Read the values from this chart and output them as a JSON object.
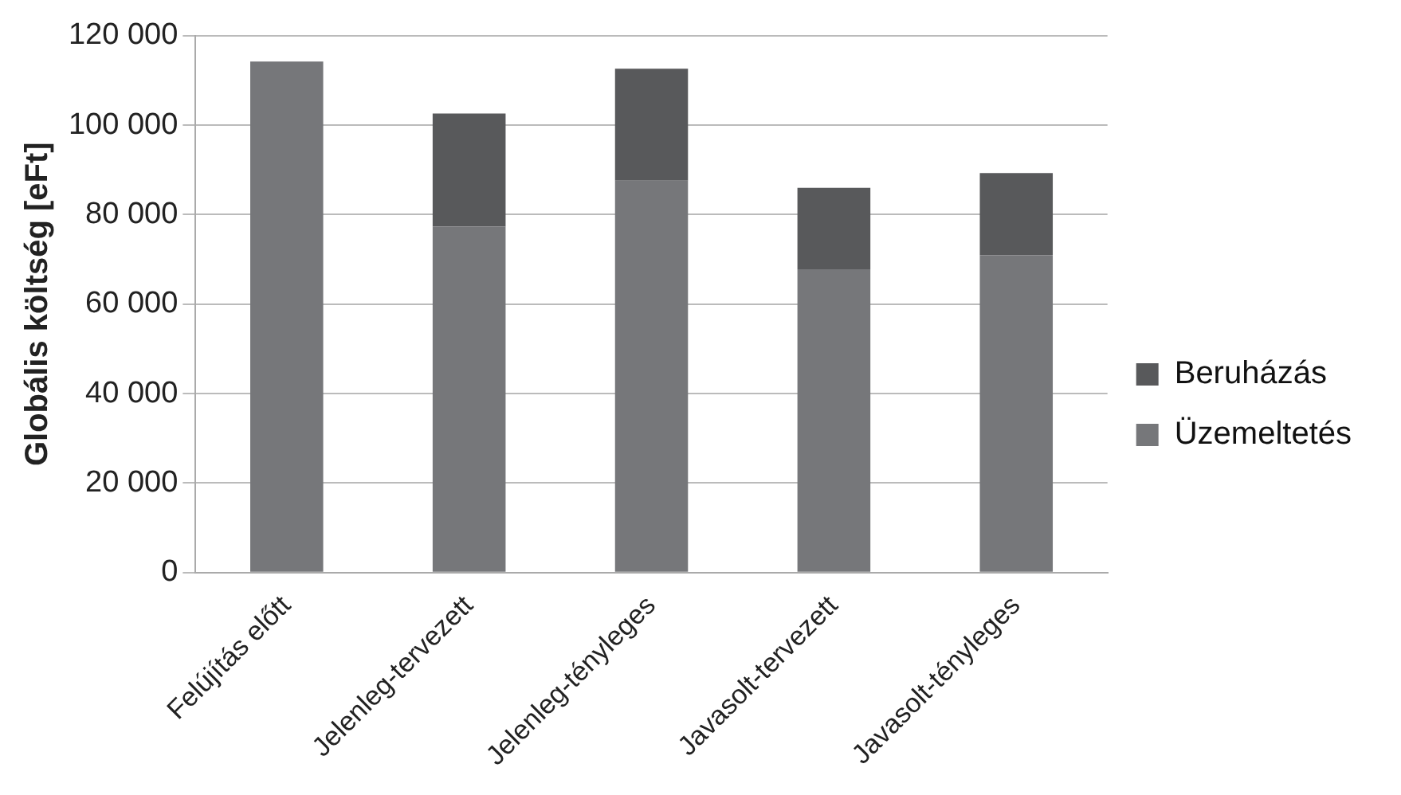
{
  "chart_data": {
    "type": "bar",
    "stacked": true,
    "ylabel": "Globális költség [eFt]",
    "categories": [
      "Felújítás előtt",
      "Jelenleg-tervezett",
      "Jelenleg-tényleges",
      "Javasolt-tervezett",
      "Javasolt-tényleges"
    ],
    "series": [
      {
        "name": "Üzemeltetés",
        "color": "#76777a",
        "values": [
          114200,
          77300,
          87600,
          67800,
          70900
        ]
      },
      {
        "name": "Beruházás",
        "color": "#58595b",
        "values": [
          0,
          25300,
          25000,
          18200,
          18400
        ]
      }
    ],
    "ylim": [
      0,
      120000
    ],
    "yticks": [
      0,
      20000,
      40000,
      60000,
      80000,
      100000,
      120000
    ],
    "grid": "y",
    "legend": "right"
  }
}
